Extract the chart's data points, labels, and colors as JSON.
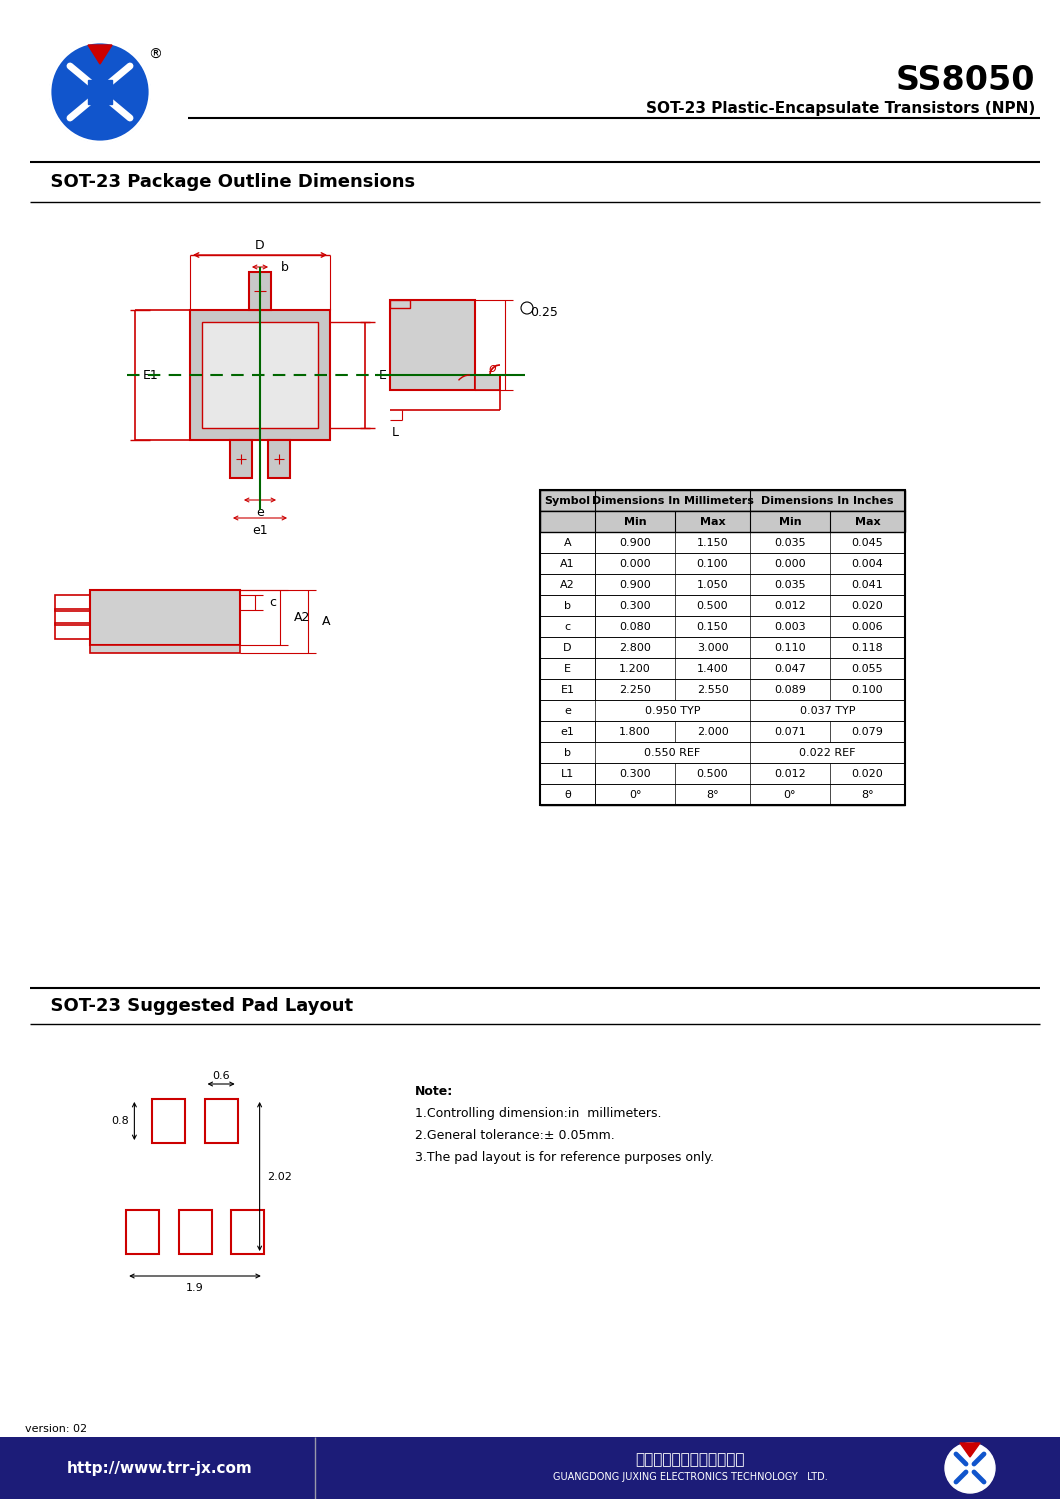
{
  "title": "SS8050",
  "subtitle": "SOT-23 Plastic-Encapsulate Transistors (NPN)",
  "section1_title": "  SOT-23 Package Outline Dimensions",
  "section2_title": "  SOT-23 Suggested Pad Layout",
  "table_rows": [
    [
      "A",
      "0.900",
      "1.150",
      "0.035",
      "0.045"
    ],
    [
      "A1",
      "0.000",
      "0.100",
      "0.000",
      "0.004"
    ],
    [
      "A2",
      "0.900",
      "1.050",
      "0.035",
      "0.041"
    ],
    [
      "b",
      "0.300",
      "0.500",
      "0.012",
      "0.020"
    ],
    [
      "c",
      "0.080",
      "0.150",
      "0.003",
      "0.006"
    ],
    [
      "D",
      "2.800",
      "3.000",
      "0.110",
      "0.118"
    ],
    [
      "E",
      "1.200",
      "1.400",
      "0.047",
      "0.055"
    ],
    [
      "E1",
      "2.250",
      "2.550",
      "0.089",
      "0.100"
    ],
    [
      "e",
      "0.950 TYP",
      "",
      "0.037 TYP",
      ""
    ],
    [
      "e1",
      "1.800",
      "2.000",
      "0.071",
      "0.079"
    ],
    [
      "b",
      "0.550 REF",
      "",
      "0.022 REF",
      ""
    ],
    [
      "L1",
      "0.300",
      "0.500",
      "0.012",
      "0.020"
    ],
    [
      "θ",
      "0°",
      "8°",
      "0°",
      "8°"
    ]
  ],
  "note_lines": [
    "Note:",
    "1.Controlling dimension:in  millimeters.",
    "2.General tolerance:± 0.05mm.",
    "3.The pad layout is for reference purposes only."
  ],
  "website": "http://www.trr-jx.com",
  "company_cn": "广东鷾兴电子科技有限公司",
  "company_en": "GUANGDONG JUXING ELECTRONICS TECHNOLOGY   LTD.",
  "version": "version: 02",
  "bg_color": "#ffffff",
  "red_color": "#cc0000",
  "green_color": "#006600",
  "blue_color": "#1155cc",
  "gray_color": "#888888",
  "header_bg": "#c8c8c8",
  "footer_bg": "#1c1c78"
}
